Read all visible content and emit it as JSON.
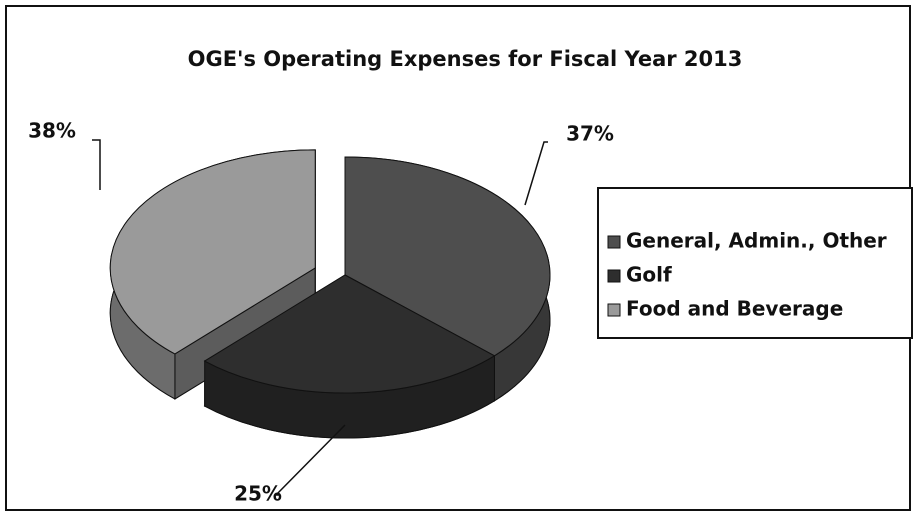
{
  "chart_data": {
    "type": "pie",
    "title": "OGE's Operating Expenses for Fiscal Year 2013",
    "categories": [
      "General, Admin., Other",
      "Golf",
      "Food and Beverage"
    ],
    "values": [
      37,
      25,
      38
    ],
    "value_labels": [
      "37%",
      "25%",
      "38%"
    ],
    "colors": [
      "#4e4e4e",
      "#2e2e2e",
      "#9a9a9a"
    ],
    "legend": "right"
  }
}
